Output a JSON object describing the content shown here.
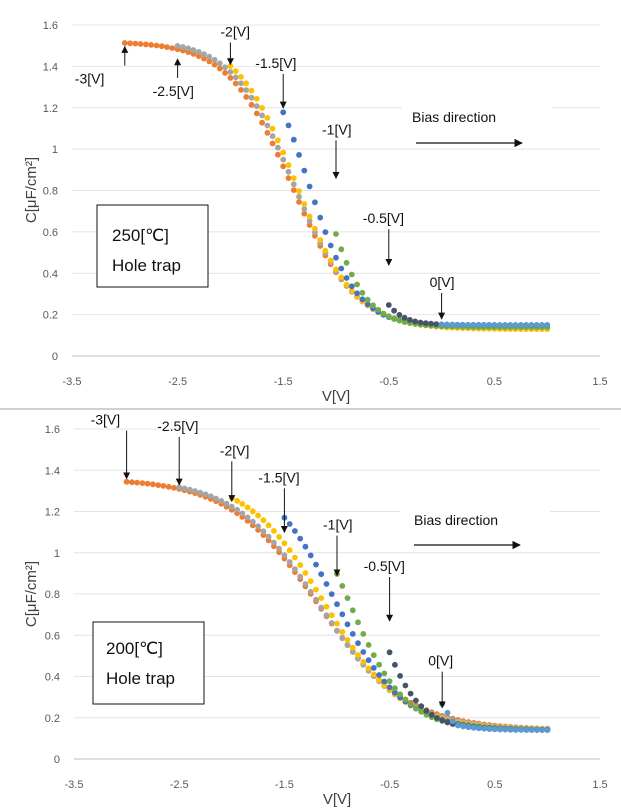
{
  "chart_data": [
    {
      "type": "scatter",
      "xlabel": "V[V]",
      "ylabel": "C[μF/cm²]",
      "xlim": [
        -3.5,
        1.5
      ],
      "ylim": [
        0,
        1.6
      ],
      "xticks": [
        "-3.5",
        "-2.5",
        "-1.5",
        "-0.5",
        "0.5",
        "1.5"
      ],
      "yticks": [
        "0",
        "0.2",
        "0.4",
        "0.6",
        "0.8",
        "1",
        "1.2",
        "1.4",
        "1.6"
      ],
      "grid": true,
      "legend_box": {
        "line1": "250[℃]",
        "line2": "Hole trap"
      },
      "bias_label": "Bias direction",
      "series": [
        {
          "name": "-3[V]",
          "color": "#ED7D31",
          "start": -3.0,
          "params": [
            1.52,
            0.13,
            -1.42,
            0.3
          ]
        },
        {
          "name": "-2.5[V]",
          "color": "#A5A5A5",
          "start": -2.5,
          "params": [
            1.53,
            0.13,
            -1.4,
            0.29
          ]
        },
        {
          "name": "-2[V]",
          "color": "#FFC000",
          "start": -2.0,
          "params": [
            1.54,
            0.13,
            -1.38,
            0.28
          ]
        },
        {
          "name": "-1.5[V]",
          "color": "#4472C4",
          "start": -1.5,
          "params": [
            1.56,
            0.14,
            -1.27,
            0.23
          ]
        },
        {
          "name": "-1[V]",
          "color": "#70AD47",
          "start": -1.0,
          "params": [
            1.59,
            0.14,
            -1.16,
            0.2
          ]
        },
        {
          "name": "-0.5[V]",
          "color": "#44546A",
          "start": -0.5,
          "params": [
            1.6,
            0.15,
            -0.87,
            0.14
          ]
        },
        {
          "name": "0[V]",
          "color": "#5B9BD5",
          "start": 0.0,
          "params": [
            1.6,
            0.15,
            -0.87,
            0.14
          ]
        }
      ],
      "annotations": [
        {
          "text": "-3[V]",
          "x": -3.0,
          "y": 1.52
        },
        {
          "text": "-2.5[V]",
          "x": -2.5,
          "y": 1.46
        },
        {
          "text": "-2[V]",
          "x": -2.0,
          "y": 1.38
        },
        {
          "text": "-1.5[V]",
          "x": -1.5,
          "y": 1.17
        },
        {
          "text": "-1[V]",
          "x": -1.0,
          "y": 0.83
        },
        {
          "text": "-0.5[V]",
          "x": -0.5,
          "y": 0.41
        },
        {
          "text": "0[V]",
          "x": 0.0,
          "y": 0.15
        }
      ]
    },
    {
      "type": "scatter",
      "xlabel": "V[V]",
      "ylabel": "C[μF/cm²]",
      "xlim": [
        -3.5,
        1.5
      ],
      "ylim": [
        0,
        1.6
      ],
      "xticks": [
        "-3.5",
        "-2.5",
        "-1.5",
        "-0.5",
        "0.5",
        "1.5"
      ],
      "yticks": [
        "0",
        "0.2",
        "0.4",
        "0.6",
        "0.8",
        "1",
        "1.2",
        "1.4",
        "1.6"
      ],
      "grid": true,
      "legend_box": {
        "line1": "200[℃]",
        "line2": "Hole trap"
      },
      "bias_label": "Bias direction",
      "series": [
        {
          "name": "-3[V]",
          "color": "#ED7D31",
          "start": -3.0,
          "params": [
            1.36,
            0.14,
            -1.18,
            0.42
          ]
        },
        {
          "name": "-2.5[V]",
          "color": "#A5A5A5",
          "start": -2.5,
          "params": [
            1.36,
            0.14,
            -1.17,
            0.4
          ]
        },
        {
          "name": "-2[V]",
          "color": "#FFC000",
          "start": -2.0,
          "params": [
            1.37,
            0.14,
            -1.12,
            0.37
          ]
        },
        {
          "name": "-1.5[V]",
          "color": "#4472C4",
          "start": -1.5,
          "params": [
            1.4,
            0.14,
            -1.02,
            0.32
          ]
        },
        {
          "name": "-1[V]",
          "color": "#70AD47",
          "start": -1.0,
          "params": [
            1.42,
            0.14,
            -0.9,
            0.27
          ]
        },
        {
          "name": "-0.5[V]",
          "color": "#44546A",
          "start": -0.5,
          "params": [
            1.45,
            0.14,
            -0.69,
            0.21
          ]
        },
        {
          "name": "0[V]",
          "color": "#5B9BD5",
          "start": 0.0,
          "params": [
            1.45,
            0.14,
            -0.69,
            0.21
          ],
          "bump": 0.08
        }
      ],
      "annotations": [
        {
          "text": "-3[V]",
          "x": -3.0,
          "y": 1.33
        },
        {
          "text": "-2.5[V]",
          "x": -2.5,
          "y": 1.3
        },
        {
          "text": "-2[V]",
          "x": -2.0,
          "y": 1.22
        },
        {
          "text": "-1.5[V]",
          "x": -1.5,
          "y": 1.07
        },
        {
          "text": "-1[V]",
          "x": -1.0,
          "y": 0.86
        },
        {
          "text": "-0.5[V]",
          "x": -0.5,
          "y": 0.64
        },
        {
          "text": "0[V]",
          "x": 0.0,
          "y": 0.22
        }
      ]
    }
  ]
}
